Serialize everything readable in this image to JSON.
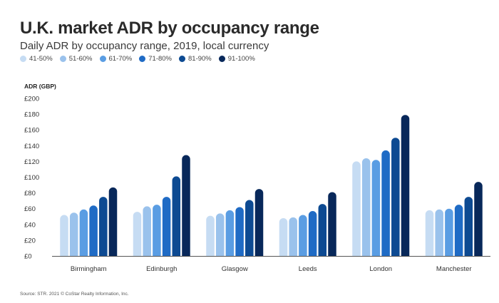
{
  "colors": [
    "#c6dcf3",
    "#9ac2ec",
    "#5a9de3",
    "#1f6bc5",
    "#0d4a92",
    "#08285a"
  ],
  "chart_data": {
    "type": "bar",
    "title": "U.K. market ADR by occupancy range",
    "subtitle": "Daily ADR by occupancy range, 2019, local currency",
    "ylabel": "ADR (GBP)",
    "xlabel": "",
    "ylim": [
      0,
      200
    ],
    "yticks": [
      "£0",
      "£20",
      "£40",
      "£60",
      "£80",
      "£100",
      "£120",
      "£140",
      "£160",
      "£180",
      "£200"
    ],
    "categories": [
      "Birmingham",
      "Edinburgh",
      "Glasgow",
      "Leeds",
      "London",
      "Manchester"
    ],
    "series": [
      {
        "name": "41-50%",
        "values": [
          52,
          56,
          51,
          48,
          120,
          58
        ]
      },
      {
        "name": "51-60%",
        "values": [
          55,
          63,
          54,
          49,
          124,
          59
        ]
      },
      {
        "name": "61-70%",
        "values": [
          59,
          65,
          58,
          52,
          122,
          60
        ]
      },
      {
        "name": "71-80%",
        "values": [
          64,
          75,
          62,
          57,
          134,
          65
        ]
      },
      {
        "name": "81-90%",
        "values": [
          75,
          101,
          71,
          66,
          150,
          75
        ]
      },
      {
        "name": "91-100%",
        "values": [
          87,
          128,
          85,
          81,
          179,
          94
        ]
      }
    ],
    "grid": false,
    "legend": "top-left"
  },
  "source": "Source: STR. 2021 © CoStar Realty Information, Inc."
}
